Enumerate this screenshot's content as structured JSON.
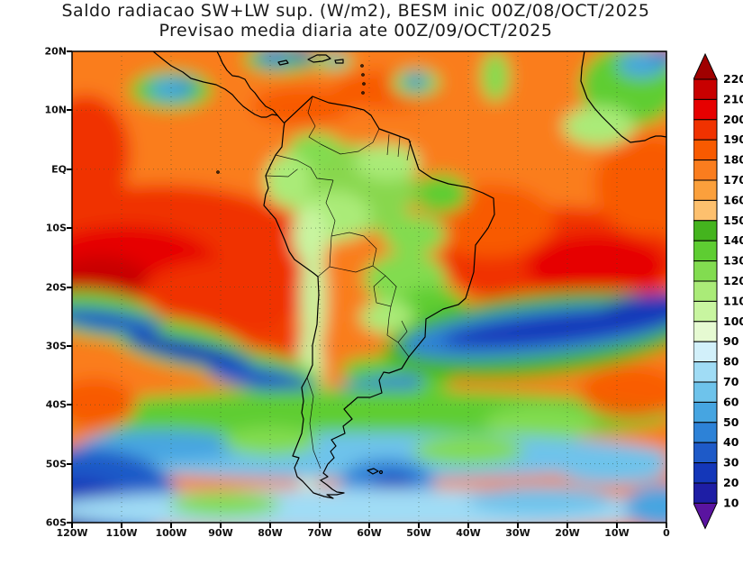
{
  "title": {
    "line1": "Saldo radiacao SW+LW sup. (W/m2), BESM inic 00Z/08/OCT/2025",
    "line2": "Previsao media diaria ate 00Z/09/OCT/2025"
  },
  "map": {
    "lat_labels": [
      "20N",
      "10N",
      "EQ",
      "10S",
      "20S",
      "30S",
      "40S",
      "50S",
      "60S"
    ],
    "lon_labels": [
      "120W",
      "110W",
      "100W",
      "90W",
      "80W",
      "70W",
      "60W",
      "50W",
      "40W",
      "30W",
      "20W",
      "10W",
      "0"
    ]
  },
  "colorbar": {
    "unit": "W/m2",
    "labels": [
      "220",
      "210",
      "200",
      "190",
      "180",
      "170",
      "160",
      "150",
      "140",
      "130",
      "120",
      "110",
      "100",
      "90",
      "80",
      "70",
      "60",
      "50",
      "40",
      "30",
      "20",
      "10"
    ],
    "colors_top_to_bottom": [
      "#a00000",
      "#c80000",
      "#e60000",
      "#f03200",
      "#f85a00",
      "#fa7d1e",
      "#fba03c",
      "#fdc06e",
      "#44b41e",
      "#5ecd32",
      "#82dc50",
      "#aaeb78",
      "#c8f5a0",
      "#e6fad2",
      "#d2f0fa",
      "#a0dcf5",
      "#6ec3eb",
      "#46a5e1",
      "#2d82d7",
      "#1e5ac8",
      "#1437b9",
      "#1e1ea5",
      "#5a14a0"
    ]
  }
}
